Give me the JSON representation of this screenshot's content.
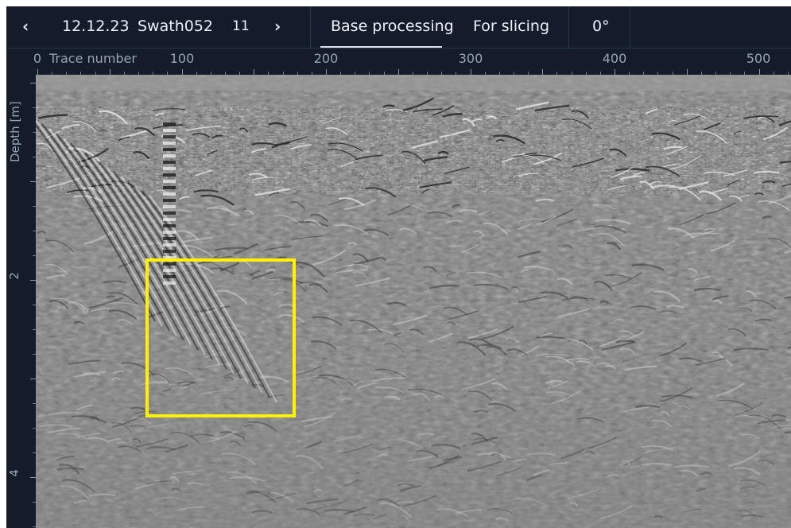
{
  "toolbar": {
    "prev_label": "‹",
    "date": "12.12.23",
    "swath": "Swath052",
    "swath_number": "11",
    "next_label": "›",
    "tabs": [
      {
        "label": "Base processing",
        "active": true
      },
      {
        "label": "For slicing",
        "active": false
      }
    ],
    "angle": "0°"
  },
  "x_axis": {
    "title": "Trace number",
    "ticks": [
      "0",
      "100",
      "200",
      "300",
      "400",
      "500"
    ]
  },
  "y_axis": {
    "title": "Depth [m]",
    "ticks": [
      "2",
      "4"
    ]
  },
  "colors": {
    "selection": "#fff200",
    "toolbar_bg": "#141b2b",
    "radargram_mid": "#808080"
  },
  "icons": {
    "prev": "chevron-left-icon",
    "next": "chevron-right-icon"
  }
}
